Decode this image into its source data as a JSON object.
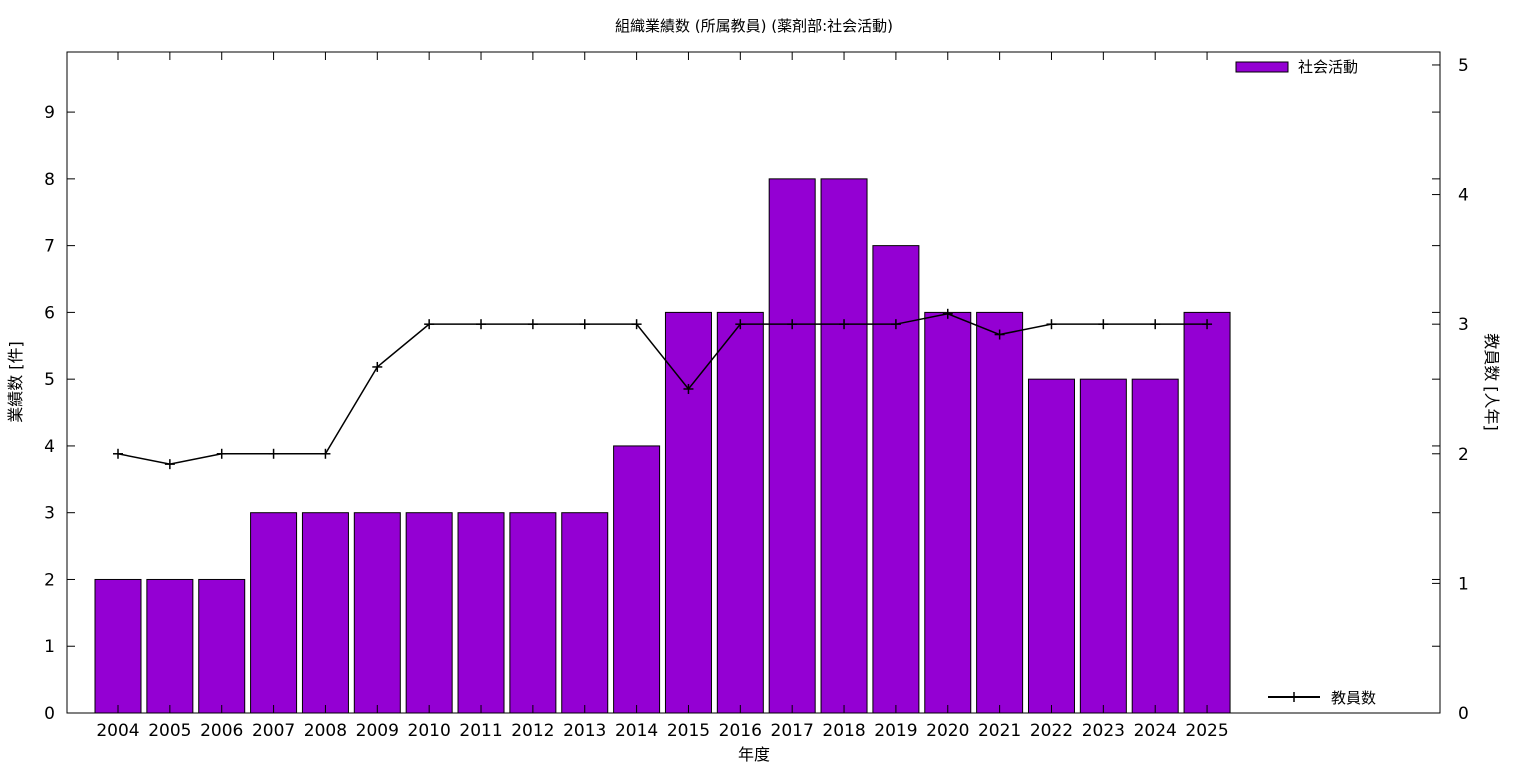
{
  "chart_data": {
    "type": "bar",
    "title": "組織業績数 (所属教員) (薬剤部:社会活動)",
    "xlabel": "年度",
    "ylabel": "業績数 [件]",
    "y2label": "教員数 [人年]",
    "categories": [
      "2004",
      "2005",
      "2006",
      "2007",
      "2008",
      "2009",
      "2010",
      "2011",
      "2012",
      "2013",
      "2014",
      "2015",
      "2016",
      "2017",
      "2018",
      "2019",
      "2020",
      "2021",
      "2022",
      "2023",
      "2024",
      "2025"
    ],
    "series": [
      {
        "name": "社会活動",
        "type": "bar",
        "axis": "left",
        "color": "#9400d3",
        "values": [
          2,
          2,
          2,
          3,
          3,
          3,
          3,
          3,
          3,
          3,
          4,
          6,
          6,
          8,
          8,
          7,
          6,
          6,
          5,
          5,
          5,
          6
        ]
      },
      {
        "name": "教員数",
        "type": "line",
        "axis": "right",
        "color": "#000000",
        "marker": "plus",
        "values": [
          2.0,
          1.92,
          2.0,
          2.0,
          2.0,
          2.67,
          3.0,
          3.0,
          3.0,
          3.0,
          3.0,
          2.5,
          3.0,
          3.0,
          3.0,
          3.0,
          3.08,
          2.92,
          3.0,
          3.0,
          3.0,
          3.0
        ]
      }
    ],
    "ylim": [
      0,
      9.9
    ],
    "yticks": [
      "0",
      "1",
      "2",
      "3",
      "4",
      "5",
      "6",
      "7",
      "8",
      "9"
    ],
    "y2lim": [
      0,
      5.1
    ],
    "y2ticks": [
      "0",
      "1",
      "2",
      "3",
      "4",
      "5"
    ],
    "grid": false,
    "legend": "top-right / bottom-right"
  }
}
